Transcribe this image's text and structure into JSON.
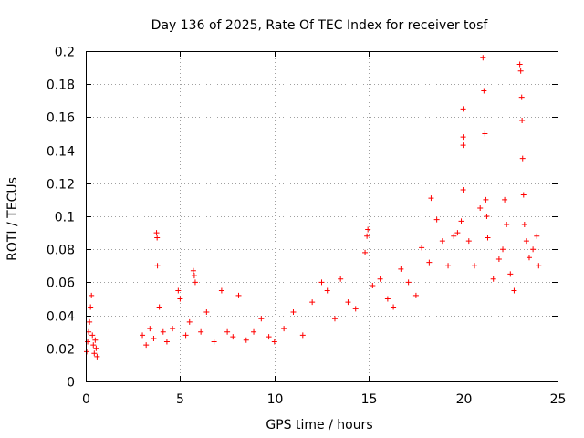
{
  "chart_data": {
    "type": "scatter",
    "title": "Day 136 of 2025, Rate Of TEC Index for receiver tosf",
    "xlabel": "GPS time / hours",
    "ylabel": "ROTI / TECUs",
    "xlim": [
      0,
      25
    ],
    "ylim": [
      0,
      0.2
    ],
    "grid": true,
    "marker": "plus",
    "color": "#ff0000",
    "xticks": [
      0,
      5,
      10,
      15,
      20,
      25
    ],
    "xtick_labels": [
      "0",
      "5",
      "10",
      "15",
      "20",
      "25"
    ],
    "yticks": [
      0,
      0.02,
      0.04,
      0.06,
      0.08,
      0.1,
      0.12,
      0.14,
      0.16,
      0.18,
      0.2
    ],
    "ytick_labels": [
      "0",
      "0.02",
      "0.04",
      "0.06",
      "0.08",
      "0.1",
      "0.12",
      "0.14",
      "0.16",
      "0.18",
      "0.2"
    ],
    "series": [
      {
        "name": "ROTI",
        "points": [
          [
            0.05,
            0.018
          ],
          [
            0.1,
            0.024
          ],
          [
            0.15,
            0.03
          ],
          [
            0.2,
            0.036
          ],
          [
            0.25,
            0.045
          ],
          [
            0.3,
            0.052
          ],
          [
            0.35,
            0.028
          ],
          [
            0.4,
            0.022
          ],
          [
            0.45,
            0.017
          ],
          [
            0.5,
            0.025
          ],
          [
            0.55,
            0.02
          ],
          [
            0.6,
            0.015
          ],
          [
            3.0,
            0.028
          ],
          [
            3.2,
            0.022
          ],
          [
            3.4,
            0.032
          ],
          [
            3.6,
            0.026
          ],
          [
            3.75,
            0.09
          ],
          [
            3.78,
            0.087
          ],
          [
            3.8,
            0.07
          ],
          [
            3.9,
            0.045
          ],
          [
            4.1,
            0.03
          ],
          [
            4.3,
            0.024
          ],
          [
            4.6,
            0.032
          ],
          [
            4.9,
            0.055
          ],
          [
            5.0,
            0.05
          ],
          [
            5.3,
            0.028
          ],
          [
            5.5,
            0.036
          ],
          [
            5.7,
            0.067
          ],
          [
            5.75,
            0.064
          ],
          [
            5.8,
            0.06
          ],
          [
            6.1,
            0.03
          ],
          [
            6.4,
            0.042
          ],
          [
            6.8,
            0.024
          ],
          [
            7.2,
            0.055
          ],
          [
            7.5,
            0.03
          ],
          [
            7.8,
            0.027
          ],
          [
            8.1,
            0.052
          ],
          [
            8.5,
            0.025
          ],
          [
            8.9,
            0.03
          ],
          [
            9.3,
            0.038
          ],
          [
            9.7,
            0.027
          ],
          [
            10.0,
            0.024
          ],
          [
            10.5,
            0.032
          ],
          [
            11.0,
            0.042
          ],
          [
            11.5,
            0.028
          ],
          [
            12.0,
            0.048
          ],
          [
            12.5,
            0.06
          ],
          [
            12.8,
            0.055
          ],
          [
            13.2,
            0.038
          ],
          [
            13.5,
            0.062
          ],
          [
            13.9,
            0.048
          ],
          [
            14.3,
            0.044
          ],
          [
            14.8,
            0.078
          ],
          [
            14.9,
            0.088
          ],
          [
            14.95,
            0.092
          ],
          [
            15.2,
            0.058
          ],
          [
            15.6,
            0.062
          ],
          [
            16.0,
            0.05
          ],
          [
            16.3,
            0.045
          ],
          [
            16.7,
            0.068
          ],
          [
            17.1,
            0.06
          ],
          [
            17.5,
            0.052
          ],
          [
            17.8,
            0.081
          ],
          [
            18.2,
            0.072
          ],
          [
            18.3,
            0.111
          ],
          [
            18.6,
            0.098
          ],
          [
            18.9,
            0.085
          ],
          [
            19.2,
            0.07
          ],
          [
            19.5,
            0.088
          ],
          [
            19.7,
            0.09
          ],
          [
            19.9,
            0.097
          ],
          [
            20.0,
            0.165
          ],
          [
            20.0,
            0.148
          ],
          [
            20.0,
            0.143
          ],
          [
            20.0,
            0.116
          ],
          [
            20.3,
            0.085
          ],
          [
            20.6,
            0.07
          ],
          [
            20.9,
            0.105
          ],
          [
            21.05,
            0.196
          ],
          [
            21.1,
            0.176
          ],
          [
            21.15,
            0.15
          ],
          [
            21.2,
            0.11
          ],
          [
            21.25,
            0.1
          ],
          [
            21.3,
            0.087
          ],
          [
            21.6,
            0.062
          ],
          [
            21.9,
            0.074
          ],
          [
            22.1,
            0.08
          ],
          [
            22.2,
            0.11
          ],
          [
            22.3,
            0.095
          ],
          [
            22.5,
            0.065
          ],
          [
            22.7,
            0.055
          ],
          [
            23.0,
            0.192
          ],
          [
            23.05,
            0.188
          ],
          [
            23.1,
            0.172
          ],
          [
            23.12,
            0.158
          ],
          [
            23.15,
            0.135
          ],
          [
            23.2,
            0.113
          ],
          [
            23.25,
            0.095
          ],
          [
            23.35,
            0.085
          ],
          [
            23.5,
            0.075
          ],
          [
            23.7,
            0.08
          ],
          [
            23.9,
            0.088
          ],
          [
            24.0,
            0.07
          ]
        ]
      }
    ]
  }
}
